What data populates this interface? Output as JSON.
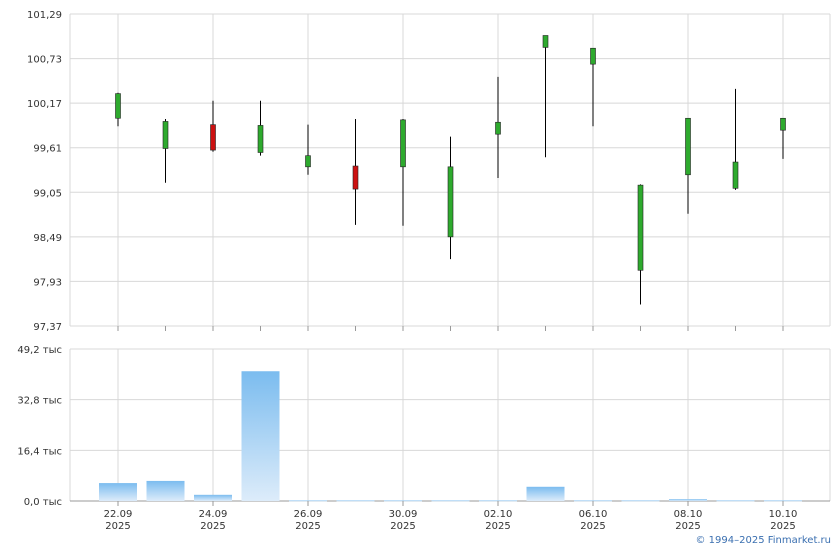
{
  "copyright": "© 1994–2025 Finmarket.ru",
  "colors": {
    "up": "#2eaa2e",
    "down": "#cc1111",
    "wick": "#000000",
    "grid": "#d8d8d8",
    "volume_top": "#7bbcef",
    "volume_bottom": "#ddecfa"
  },
  "chart_data": [
    {
      "type": "candlestick",
      "ylim": [
        97.37,
        101.29
      ],
      "yticks": [
        "97,37",
        "97,93",
        "98,49",
        "99,05",
        "99,61",
        "100,17",
        "100,73",
        "101,29"
      ],
      "yticks_values": [
        97.37,
        97.93,
        98.49,
        99.05,
        99.61,
        100.17,
        100.73,
        101.29
      ],
      "grid": true,
      "candles": [
        {
          "date": "22.09.2025",
          "open": 99.98,
          "high": 100.3,
          "low": 99.88,
          "close": 100.29
        },
        {
          "date": "23.09.2025",
          "open": 99.6,
          "high": 99.97,
          "low": 99.17,
          "close": 99.94
        },
        {
          "date": "24.09.2025",
          "open": 99.9,
          "high": 100.2,
          "low": 99.56,
          "close": 99.58
        },
        {
          "date": "25.09.2025",
          "open": 99.55,
          "high": 100.2,
          "low": 99.51,
          "close": 99.89
        },
        {
          "date": "26.09.2025",
          "open": 99.37,
          "high": 99.9,
          "low": 99.27,
          "close": 99.51
        },
        {
          "date": "29.09.2025",
          "open": 99.38,
          "high": 99.97,
          "low": 98.64,
          "close": 99.09
        },
        {
          "date": "30.09.2025",
          "open": 99.37,
          "high": 99.97,
          "low": 98.63,
          "close": 99.96
        },
        {
          "date": "01.10.2025",
          "open": 98.49,
          "high": 99.75,
          "low": 98.21,
          "close": 99.37
        },
        {
          "date": "02.10.2025",
          "open": 99.78,
          "high": 100.5,
          "low": 99.23,
          "close": 99.93
        },
        {
          "date": "03.10.2025",
          "open": 100.87,
          "high": 101.02,
          "low": 99.49,
          "close": 101.02
        },
        {
          "date": "06.10.2025",
          "open": 100.66,
          "high": 100.86,
          "low": 99.88,
          "close": 100.86
        },
        {
          "date": "07.10.2025",
          "open": 98.07,
          "high": 99.15,
          "low": 97.64,
          "close": 99.14
        },
        {
          "date": "08.10.2025",
          "open": 99.27,
          "high": 99.98,
          "low": 98.78,
          "close": 99.98
        },
        {
          "date": "09.10.2025",
          "open": 99.1,
          "high": 100.35,
          "low": 99.08,
          "close": 99.43
        },
        {
          "date": "10.10.2025",
          "open": 99.83,
          "high": 99.98,
          "low": 99.47,
          "close": 99.98
        }
      ]
    },
    {
      "type": "bar",
      "ylim": [
        0,
        49.2
      ],
      "yticks": [
        "0,0 тыс",
        "16,4 тыс",
        "32,8 тыс",
        "49,2 тыс"
      ],
      "yticks_values": [
        0,
        16.4,
        32.8,
        49.2
      ],
      "grid": true,
      "values": [
        5.8,
        6.5,
        2.0,
        42.0,
        0.2,
        0.2,
        0.2,
        0.2,
        0.2,
        4.6,
        0.2,
        0.2,
        0.6,
        0.2,
        0.2
      ],
      "x_labels": [
        {
          "index": 0,
          "day": "22.09",
          "year": "2025"
        },
        {
          "index": 2,
          "day": "24.09",
          "year": "2025"
        },
        {
          "index": 4,
          "day": "26.09",
          "year": "2025"
        },
        {
          "index": 6,
          "day": "30.09",
          "year": "2025"
        },
        {
          "index": 8,
          "day": "02.10",
          "year": "2025"
        },
        {
          "index": 10,
          "day": "06.10",
          "year": "2025"
        },
        {
          "index": 12,
          "day": "08.10",
          "year": "2025"
        },
        {
          "index": 14,
          "day": "10.10",
          "year": "2025"
        }
      ]
    }
  ]
}
